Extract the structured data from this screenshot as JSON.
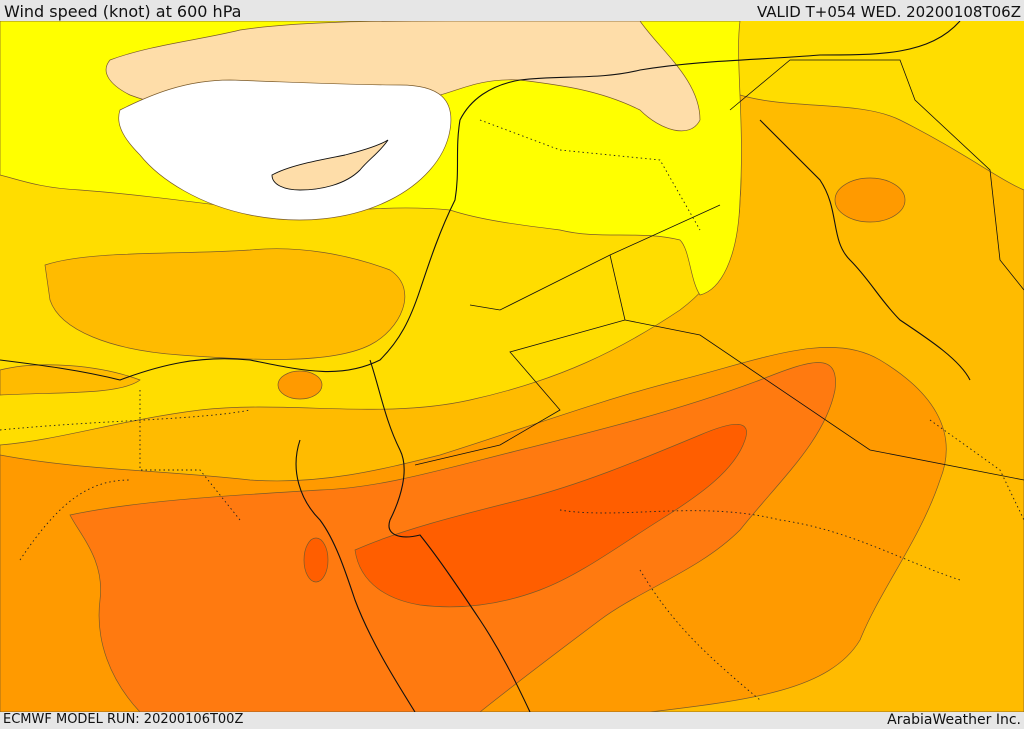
{
  "header": {
    "title": "Wind speed (knot) at 600 hPa",
    "valid": "VALID T+054 WED. 20200108T06Z"
  },
  "footer": {
    "model_run": "ECMWF MODEL RUN: 20200106T00Z",
    "credit": "ArabiaWeather Inc."
  },
  "palette": {
    "white": "#ffffff",
    "peach": "#fedda9",
    "yellow": "#ffff00",
    "gold": "#ffdd00",
    "amber": "#ffbb00",
    "orange": "#ff9a00",
    "dark_orange": "#ff7a10",
    "red_orange": "#ff5e00"
  }
}
